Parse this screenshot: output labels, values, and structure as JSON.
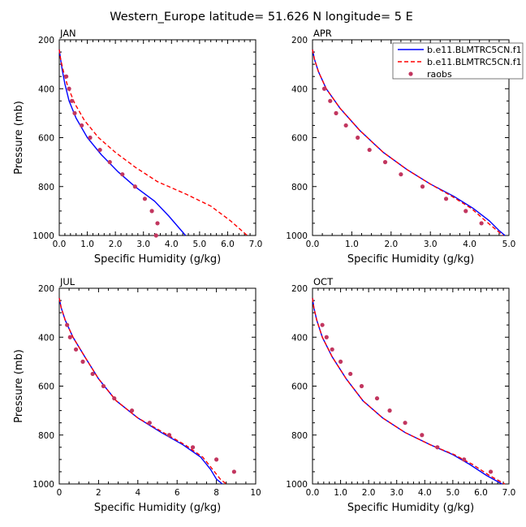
{
  "figure_title": "Western_Europe  latitude= 51.626 N longitude= 5 E",
  "legend": {
    "entries": [
      {
        "label": "b.e11.BLMTRC5CN.f1",
        "style": "solid",
        "color": "#0000ff"
      },
      {
        "label": "b.e11.BLMTRC5CN.f1",
        "style": "dashed",
        "color": "#ff0000"
      },
      {
        "label": "raobs",
        "style": "marker",
        "color": "#c2365f"
      }
    ]
  },
  "chart_data": [
    {
      "type": "line",
      "panel": "JAN",
      "xlabel": "Specific Humidity (g/kg)",
      "ylabel": "Pressure (mb)",
      "xlim": [
        0,
        7
      ],
      "ylim": [
        1000,
        200
      ],
      "xticks": [
        "0.0",
        "1.0",
        "2.0",
        "3.0",
        "4.0",
        "5.0",
        "6.0",
        "7.0"
      ],
      "yticks": [
        "200",
        "400",
        "600",
        "800",
        "1000"
      ],
      "series": [
        {
          "name": "b.e11.BLMTRC5CN.f1",
          "style": "solid",
          "x": [
            0.0,
            0.05,
            0.1,
            0.2,
            0.35,
            0.6,
            1.0,
            1.5,
            2.1,
            2.7,
            3.4,
            3.9,
            4.5
          ],
          "y": [
            240,
            280,
            320,
            380,
            450,
            520,
            600,
            670,
            740,
            800,
            860,
            920,
            1000
          ]
        },
        {
          "name": "b.e11.BLMTRC5CN.f1",
          "style": "dashed",
          "x": [
            0.0,
            0.05,
            0.15,
            0.3,
            0.55,
            0.9,
            1.4,
            2.0,
            2.7,
            3.5,
            4.5,
            5.4,
            6.1,
            6.7
          ],
          "y": [
            240,
            280,
            330,
            390,
            460,
            530,
            600,
            660,
            720,
            780,
            830,
            880,
            940,
            1000
          ]
        },
        {
          "name": "raobs",
          "style": "marker",
          "x": [
            0.25,
            0.35,
            0.45,
            0.55,
            0.8,
            1.1,
            1.45,
            1.8,
            2.25,
            2.7,
            3.05,
            3.3,
            3.5,
            3.45
          ],
          "y": [
            350,
            400,
            450,
            500,
            550,
            600,
            650,
            700,
            750,
            800,
            850,
            900,
            950,
            1000
          ]
        }
      ]
    },
    {
      "type": "line",
      "panel": "APR",
      "xlabel": "Specific Humidity (g/kg)",
      "ylabel": "",
      "xlim": [
        0,
        5
      ],
      "ylim": [
        1000,
        200
      ],
      "xticks": [
        "0.0",
        "1.0",
        "2.0",
        "3.0",
        "4.0",
        "5.0"
      ],
      "yticks": [
        "200",
        "400",
        "600",
        "800",
        "1000"
      ],
      "series": [
        {
          "name": "b.e11.BLMTRC5CN.f1",
          "style": "solid",
          "x": [
            0.0,
            0.05,
            0.15,
            0.35,
            0.7,
            1.2,
            1.8,
            2.4,
            3.0,
            3.6,
            4.1,
            4.5,
            4.75,
            4.9
          ],
          "y": [
            240,
            280,
            330,
            400,
            480,
            570,
            660,
            730,
            790,
            840,
            890,
            940,
            980,
            1000
          ]
        },
        {
          "name": "b.e11.BLMTRC5CN.f1",
          "style": "dashed",
          "x": [
            0.0,
            0.05,
            0.15,
            0.35,
            0.7,
            1.2,
            1.8,
            2.4,
            3.0,
            3.55,
            4.05,
            4.4,
            4.7,
            4.85
          ],
          "y": [
            240,
            280,
            330,
            400,
            480,
            570,
            660,
            730,
            790,
            840,
            890,
            940,
            980,
            1000
          ]
        },
        {
          "name": "raobs",
          "style": "marker",
          "x": [
            0.3,
            0.45,
            0.6,
            0.85,
            1.15,
            1.45,
            1.85,
            2.25,
            2.8,
            3.4,
            3.9,
            4.3
          ],
          "y": [
            400,
            450,
            500,
            550,
            600,
            650,
            700,
            750,
            800,
            850,
            900,
            950
          ]
        }
      ]
    },
    {
      "type": "line",
      "panel": "JUL",
      "xlabel": "Specific Humidity (g/kg)",
      "ylabel": "Pressure (mb)",
      "xlim": [
        0,
        10
      ],
      "ylim": [
        1000,
        200
      ],
      "xticks": [
        "0",
        "2",
        "4",
        "6",
        "8",
        "10"
      ],
      "yticks": [
        "200",
        "400",
        "600",
        "800",
        "1000"
      ],
      "series": [
        {
          "name": "b.e11.BLMTRC5CN.f1",
          "style": "solid",
          "x": [
            0.0,
            0.1,
            0.3,
            0.7,
            1.3,
            2.0,
            2.9,
            4.0,
            5.2,
            6.3,
            7.2,
            7.7,
            8.0,
            8.3
          ],
          "y": [
            240,
            280,
            330,
            400,
            480,
            570,
            660,
            730,
            790,
            840,
            890,
            940,
            980,
            1000
          ]
        },
        {
          "name": "b.e11.BLMTRC5CN.f1",
          "style": "dashed",
          "x": [
            0.0,
            0.1,
            0.3,
            0.7,
            1.3,
            2.0,
            2.9,
            4.0,
            5.3,
            6.4,
            7.3,
            7.8,
            8.2,
            8.5
          ],
          "y": [
            240,
            280,
            330,
            400,
            480,
            570,
            660,
            730,
            790,
            840,
            890,
            940,
            980,
            1000
          ]
        },
        {
          "name": "raobs",
          "style": "marker",
          "x": [
            0.4,
            0.55,
            0.85,
            1.2,
            1.7,
            2.25,
            2.8,
            3.7,
            4.6,
            5.6,
            6.8,
            8.0,
            8.9
          ],
          "y": [
            350,
            400,
            450,
            500,
            550,
            600,
            650,
            700,
            750,
            800,
            850,
            900,
            950
          ]
        }
      ]
    },
    {
      "type": "line",
      "panel": "OCT",
      "xlabel": "Specific Humidity (g/kg)",
      "ylabel": "",
      "xlim": [
        0,
        7
      ],
      "ylim": [
        1000,
        200
      ],
      "xticks": [
        "0.0",
        "1.0",
        "2.0",
        "3.0",
        "4.0",
        "5.0",
        "6.0",
        "7.0"
      ],
      "yticks": [
        "200",
        "400",
        "600",
        "800",
        "1000"
      ],
      "series": [
        {
          "name": "b.e11.BLMTRC5CN.f1",
          "style": "solid",
          "x": [
            0.0,
            0.05,
            0.15,
            0.35,
            0.7,
            1.2,
            1.8,
            2.5,
            3.3,
            4.2,
            5.0,
            5.6,
            6.2,
            6.75
          ],
          "y": [
            240,
            280,
            330,
            400,
            480,
            570,
            660,
            730,
            790,
            840,
            880,
            920,
            965,
            1000
          ]
        },
        {
          "name": "b.e11.BLMTRC5CN.f1",
          "style": "dashed",
          "x": [
            0.0,
            0.05,
            0.15,
            0.35,
            0.7,
            1.2,
            1.8,
            2.5,
            3.3,
            4.2,
            5.05,
            5.7,
            6.3,
            6.85
          ],
          "y": [
            240,
            280,
            330,
            400,
            480,
            570,
            660,
            730,
            790,
            840,
            880,
            920,
            965,
            1000
          ]
        },
        {
          "name": "raobs",
          "style": "marker",
          "x": [
            0.35,
            0.5,
            0.7,
            1.0,
            1.35,
            1.75,
            2.3,
            2.75,
            3.3,
            3.9,
            4.45,
            5.4,
            6.35
          ],
          "y": [
            350,
            400,
            450,
            500,
            550,
            600,
            650,
            700,
            750,
            800,
            850,
            900,
            950
          ]
        }
      ]
    }
  ]
}
